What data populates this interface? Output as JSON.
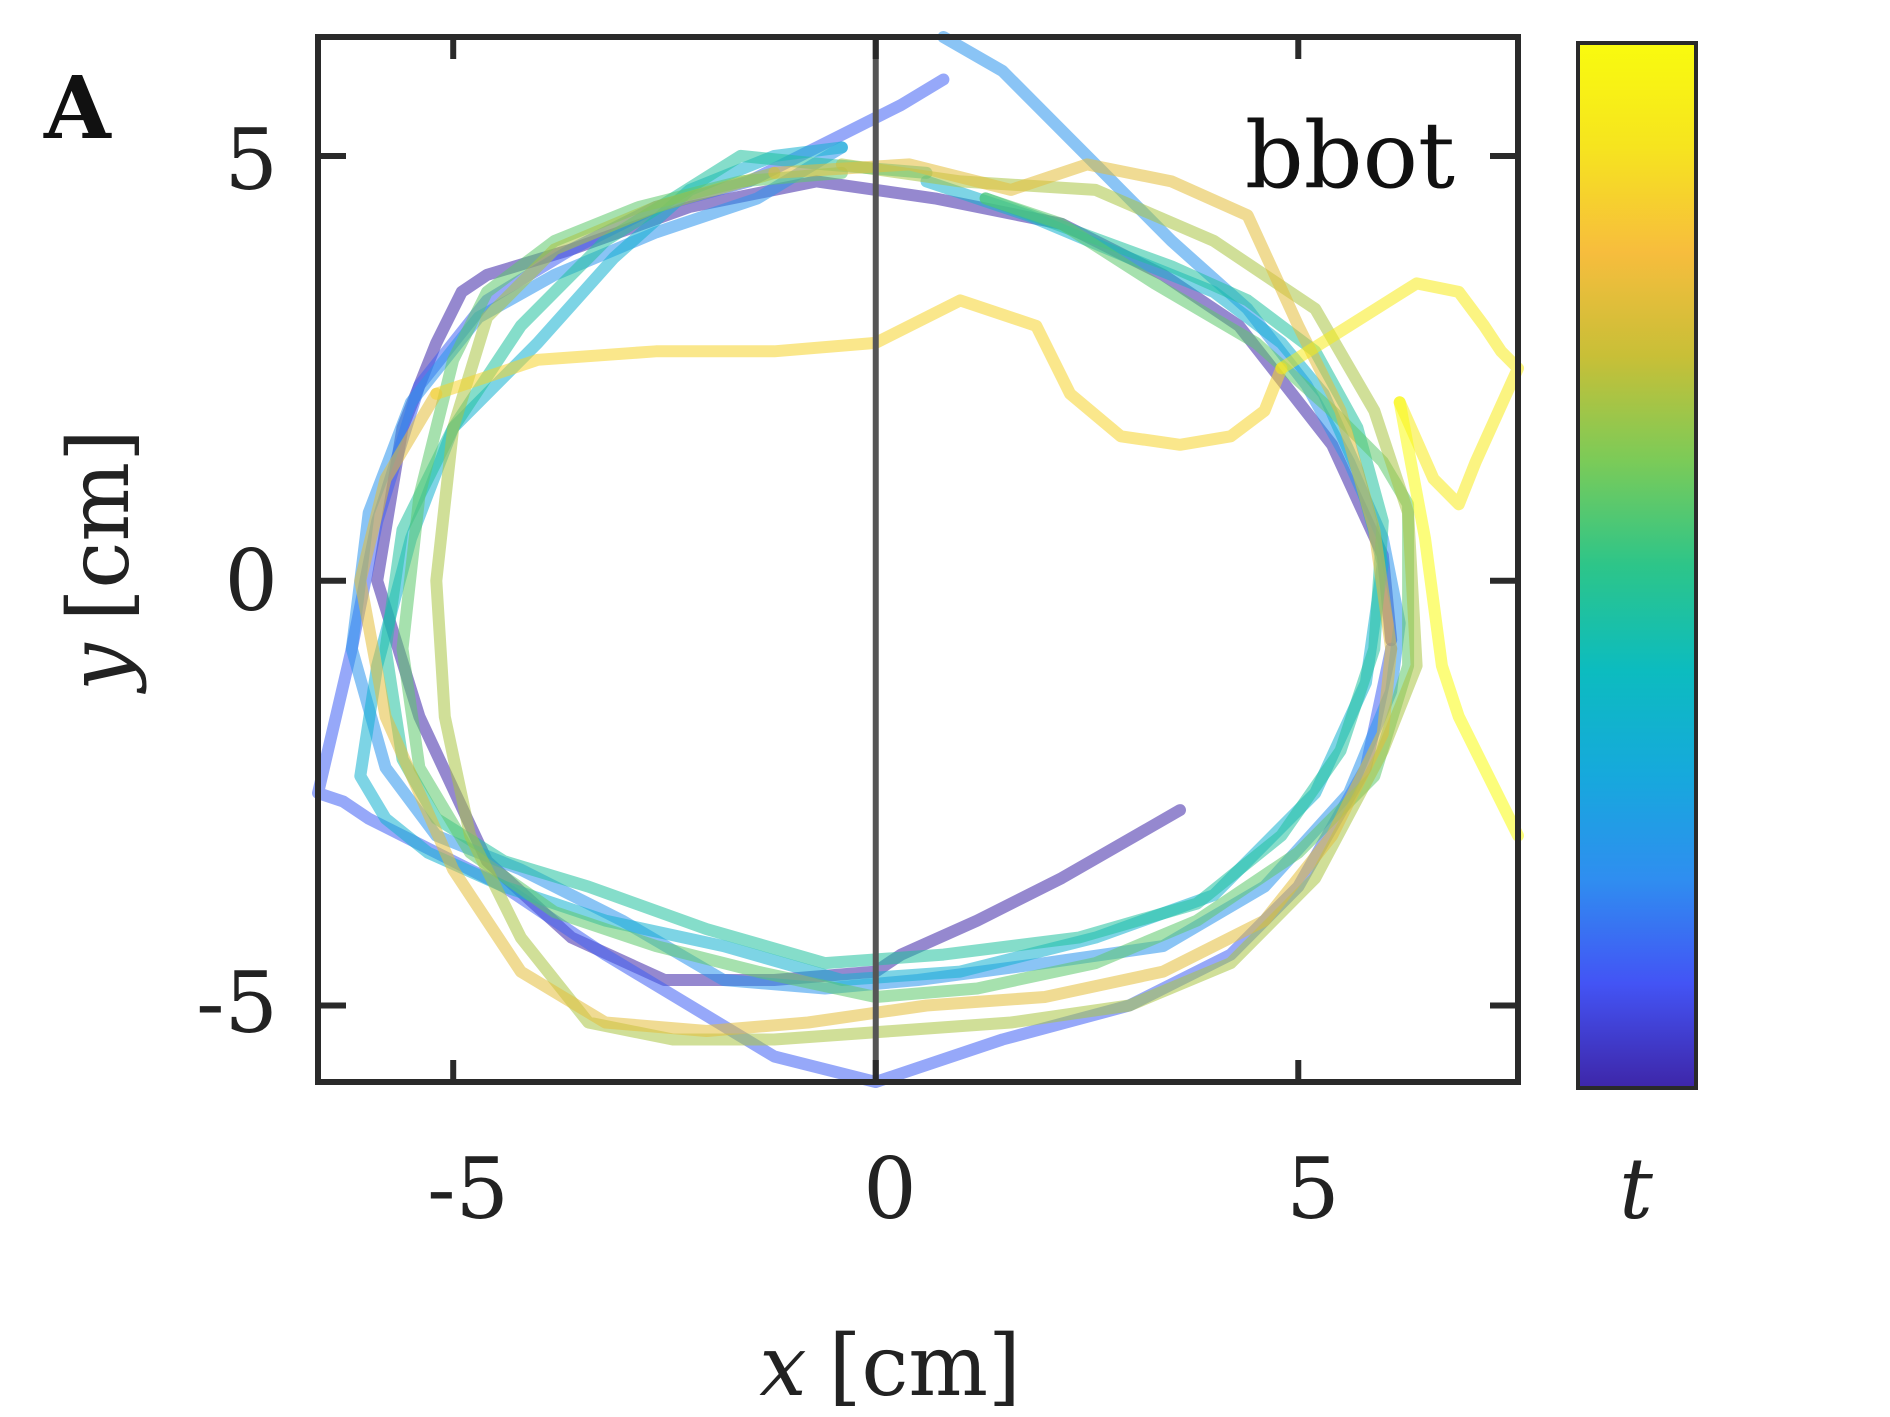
{
  "panel_label": "A",
  "chart_data": {
    "type": "line",
    "title": "",
    "annotation": "bbot",
    "xlabel_var": "x",
    "xlabel_unit": "[cm]",
    "ylabel_var": "y",
    "ylabel_unit": "[cm]",
    "colorbar_label": "t",
    "xlim": [
      -6.6,
      7.6
    ],
    "ylim": [
      -5.9,
      6.4
    ],
    "x_ticks": [
      -5,
      0,
      5
    ],
    "y_ticks": [
      -5,
      0,
      5
    ],
    "x_tick_labels": [
      "-5",
      "0",
      "5"
    ],
    "y_tick_labels": [
      "-5",
      "0",
      "5"
    ],
    "vertical_line_x": 0,
    "colormap": [
      "#3e26a8",
      "#4354f5",
      "#2f8ef0",
      "#16a9dc",
      "#0cbcbf",
      "#2dc589",
      "#7bcb58",
      "#c8bf37",
      "#f7bd3d",
      "#f6e41f",
      "#f9fb0e"
    ],
    "series": [
      {
        "name": "trajectory",
        "t_color_index": 0.0,
        "x": [
          3.6,
          2.2,
          1.2,
          0.3,
          0.0,
          -1.2,
          -2.5,
          -3.6,
          -4.6,
          -5.4,
          -5.9,
          -5.6,
          -5.2,
          -4.9,
          -4.6,
          -3.6,
          -2.2,
          -0.7,
          0.7,
          2.2,
          3.4,
          4.3,
          5.4,
          6.0,
          6.1
        ],
        "y": [
          -2.7,
          -3.5,
          -4.0,
          -4.4,
          -4.6,
          -4.7,
          -4.7,
          -4.2,
          -3.3,
          -1.6,
          0.0,
          1.8,
          2.8,
          3.4,
          3.6,
          3.9,
          4.4,
          4.7,
          4.5,
          4.2,
          3.6,
          3.0,
          1.6,
          0.3,
          -0.7
        ]
      },
      {
        "name": "trajectory",
        "t_color_index": 0.12,
        "x": [
          6.1,
          5.8,
          5.0,
          4.2,
          3.0,
          1.5,
          0.0,
          -1.2,
          -2.2,
          -3.2,
          -4.4,
          -5.4,
          -6.0,
          -6.3,
          -6.6,
          -6.2,
          -5.9,
          -5.4,
          -4.6,
          -3.6,
          -2.6,
          -1.5,
          -0.5,
          0.3,
          0.8
        ],
        "y": [
          -0.8,
          -2.2,
          -3.6,
          -4.4,
          -5.0,
          -5.4,
          -5.9,
          -5.6,
          -5.0,
          -4.4,
          -3.6,
          -3.1,
          -2.8,
          -2.6,
          -2.5,
          -0.8,
          0.7,
          2.3,
          3.3,
          3.9,
          4.4,
          4.7,
          5.2,
          5.6,
          5.9
        ]
      },
      {
        "name": "trajectory",
        "t_color_index": 0.22,
        "x": [
          0.8,
          1.5,
          2.5,
          3.5,
          4.4,
          5.1,
          5.6,
          6.0,
          6.2,
          6.1,
          5.6,
          4.6,
          3.4,
          2.0,
          0.5,
          -0.6,
          -1.8,
          -3.0,
          -4.2,
          -5.2,
          -5.8,
          -6.2,
          -6.0,
          -5.5,
          -4.7,
          -3.8,
          -2.6,
          -1.4,
          -0.4
        ],
        "y": [
          6.4,
          6.0,
          5.0,
          4.0,
          3.2,
          2.3,
          1.4,
          0.5,
          -0.5,
          -1.3,
          -2.5,
          -3.6,
          -4.3,
          -4.5,
          -4.7,
          -4.8,
          -4.7,
          -4.0,
          -3.4,
          -3.0,
          -2.2,
          -0.8,
          0.8,
          2.1,
          3.1,
          3.6,
          4.1,
          4.5,
          5.1
        ]
      },
      {
        "name": "trajectory",
        "t_color_index": 0.34,
        "x": [
          -0.4,
          -1.2,
          -2.2,
          -3.1,
          -4.0,
          -5.0,
          -5.5,
          -5.9,
          -6.1,
          -5.8,
          -5.3,
          -4.4,
          -3.2,
          -1.8,
          -0.4,
          1.0,
          2.6,
          4.0,
          5.2,
          5.8,
          6.0,
          5.7,
          5.3,
          4.8,
          4.0,
          3.0,
          1.8,
          0.6
        ],
        "y": [
          5.1,
          5.0,
          4.6,
          3.8,
          2.8,
          1.8,
          0.5,
          -1.0,
          -2.3,
          -2.8,
          -3.2,
          -3.6,
          -4.0,
          -4.3,
          -4.7,
          -4.6,
          -4.2,
          -3.7,
          -2.5,
          -1.2,
          0.2,
          1.3,
          2.2,
          2.8,
          3.4,
          3.8,
          4.3,
          4.7
        ]
      },
      {
        "name": "trajectory",
        "t_color_index": 0.46,
        "x": [
          0.6,
          -0.6,
          -1.6,
          -2.4,
          -3.2,
          -4.2,
          -5.0,
          -5.6,
          -5.8,
          -5.6,
          -5.2,
          -4.4,
          -3.4,
          -2.0,
          -0.6,
          0.8,
          2.4,
          3.8,
          4.8,
          5.5,
          5.9,
          6.0,
          5.7,
          5.2,
          4.4,
          3.5,
          2.4,
          1.3
        ],
        "y": [
          4.8,
          4.9,
          5.0,
          4.5,
          4.0,
          3.0,
          1.8,
          0.6,
          -0.8,
          -2.1,
          -2.8,
          -3.3,
          -3.6,
          -4.1,
          -4.5,
          -4.4,
          -4.2,
          -3.8,
          -3.0,
          -2.0,
          -0.8,
          0.7,
          1.8,
          2.7,
          3.3,
          3.7,
          4.1,
          4.5
        ]
      },
      {
        "name": "trajectory",
        "t_color_index": 0.56,
        "x": [
          1.3,
          2.2,
          3.3,
          4.5,
          5.4,
          6.0,
          6.3,
          6.3,
          5.9,
          5.0,
          3.8,
          2.6,
          1.2,
          0.0,
          -1.4,
          -2.6,
          -3.8,
          -4.8,
          -5.4,
          -5.6,
          -5.4,
          -5.0,
          -4.6,
          -3.8,
          -2.8,
          -1.6,
          -0.4
        ],
        "y": [
          4.5,
          4.2,
          3.5,
          2.8,
          2.0,
          1.4,
          0.9,
          -1.0,
          -2.3,
          -3.2,
          -4.0,
          -4.5,
          -4.8,
          -4.9,
          -4.6,
          -4.3,
          -3.9,
          -3.2,
          -2.2,
          -0.8,
          1.0,
          2.6,
          3.4,
          4.0,
          4.4,
          4.7,
          4.8
        ]
      },
      {
        "name": "trajectory",
        "t_color_index": 0.66,
        "x": [
          -0.4,
          1.0,
          2.6,
          4.0,
          5.2,
          5.9,
          6.3,
          6.4,
          6.0,
          5.2,
          4.2,
          3.0,
          1.6,
          0.2,
          -1.2,
          -2.4,
          -3.4,
          -4.2,
          -4.8,
          -5.1,
          -5.2,
          -5.0,
          -4.6,
          -3.8,
          -2.6,
          -1.2
        ],
        "y": [
          4.9,
          4.7,
          4.6,
          4.0,
          3.2,
          2.0,
          0.8,
          -1.0,
          -2.0,
          -3.5,
          -4.5,
          -5.0,
          -5.2,
          -5.3,
          -5.4,
          -5.4,
          -5.2,
          -4.2,
          -3.0,
          -1.6,
          0.0,
          1.8,
          3.1,
          3.9,
          4.4,
          4.8
        ]
      },
      {
        "name": "trajectory",
        "t_color_index": 0.76,
        "x": [
          -1.2,
          0.4,
          1.6,
          2.5,
          3.5,
          4.4,
          5.0,
          5.5,
          5.9,
          6.1,
          6.0,
          5.4,
          4.6,
          3.4,
          2.0,
          0.6,
          -0.8,
          -2.0,
          -3.2,
          -4.2,
          -5.0,
          -5.8,
          -6.1,
          -5.8,
          -5.2
        ],
        "y": [
          4.8,
          4.9,
          4.6,
          4.9,
          4.7,
          4.3,
          3.0,
          2.0,
          0.6,
          -0.8,
          -1.8,
          -3.0,
          -4.0,
          -4.6,
          -4.9,
          -5.0,
          -5.2,
          -5.3,
          -5.2,
          -4.6,
          -3.4,
          -1.6,
          0.0,
          1.2,
          2.2
        ]
      },
      {
        "name": "trajectory",
        "t_color_index": 0.86,
        "x": [
          -5.2,
          -4.0,
          -2.6,
          -1.2,
          0.0,
          1.0,
          1.9,
          2.3,
          2.9,
          3.6,
          4.2,
          4.6,
          4.8
        ],
        "y": [
          2.2,
          2.6,
          2.7,
          2.7,
          2.8,
          3.3,
          3.0,
          2.2,
          1.7,
          1.6,
          1.7,
          2.0,
          2.5
        ]
      },
      {
        "name": "trajectory",
        "t_color_index": 0.93,
        "x": [
          4.8,
          5.6,
          6.4,
          6.9,
          7.2,
          7.4,
          7.6,
          7.1,
          6.9,
          6.6,
          6.2
        ],
        "y": [
          2.5,
          3.0,
          3.5,
          3.4,
          3.0,
          2.7,
          2.5,
          1.4,
          0.9,
          1.2,
          2.1
        ]
      },
      {
        "name": "trajectory",
        "t_color_index": 1.0,
        "x": [
          6.2,
          6.5,
          6.7,
          6.9,
          7.1,
          7.2,
          7.4,
          7.6
        ],
        "y": [
          2.1,
          0.5,
          -1.0,
          -1.6,
          -2.0,
          -2.2,
          -2.6,
          -3.0
        ]
      }
    ]
  }
}
